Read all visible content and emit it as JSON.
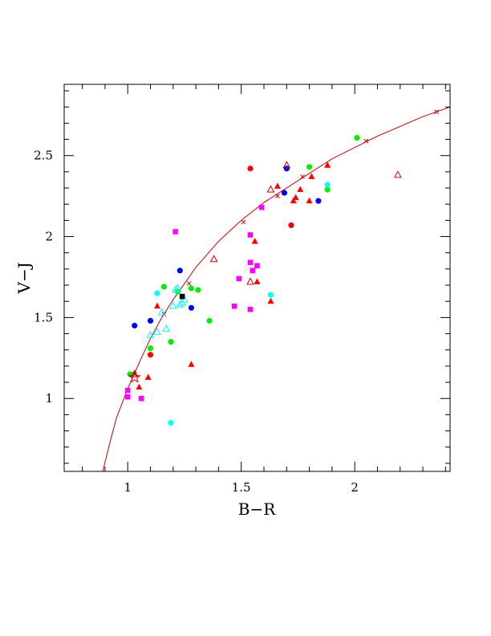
{
  "chart_data": {
    "type": "scatter",
    "xlabel": "B−R",
    "ylabel": "V−J",
    "xlim": [
      0.72,
      2.42
    ],
    "ylim": [
      0.55,
      2.94
    ],
    "x_ticks": [
      1,
      1.5,
      2
    ],
    "x_tick_labels": [
      "1",
      "1.5",
      "2"
    ],
    "y_ticks": [
      1,
      1.5,
      2,
      2.5
    ],
    "y_tick_labels": [
      "1",
      "1.5",
      "2",
      "2.5"
    ],
    "grid": false,
    "colors": {
      "red": "#ff0000",
      "magenta": "#ff00ff",
      "blue": "#0000ff",
      "green": "#00ee00",
      "cyan": "#00ffff",
      "dark_red": "#cc0000",
      "black": "#000000"
    },
    "curve": {
      "color": "#cc0000",
      "points": [
        [
          0.89,
          0.55
        ],
        [
          0.92,
          0.72
        ],
        [
          0.95,
          0.88
        ],
        [
          1.0,
          1.06
        ],
        [
          1.05,
          1.22
        ],
        [
          1.1,
          1.37
        ],
        [
          1.15,
          1.5
        ],
        [
          1.2,
          1.61
        ],
        [
          1.25,
          1.71
        ],
        [
          1.3,
          1.81
        ],
        [
          1.4,
          1.97
        ],
        [
          1.5,
          2.1
        ],
        [
          1.6,
          2.21
        ],
        [
          1.7,
          2.3
        ],
        [
          1.8,
          2.39
        ],
        [
          1.9,
          2.48
        ],
        [
          2.0,
          2.55
        ],
        [
          2.1,
          2.62
        ],
        [
          2.2,
          2.68
        ],
        [
          2.3,
          2.74
        ],
        [
          2.42,
          2.8
        ]
      ],
      "x_markers": [
        [
          1.03,
          1.15
        ],
        [
          1.16,
          1.52
        ],
        [
          1.27,
          1.71
        ],
        [
          1.51,
          2.09
        ],
        [
          1.66,
          2.25
        ],
        [
          1.77,
          2.37
        ],
        [
          2.05,
          2.59
        ],
        [
          2.36,
          2.77
        ]
      ]
    },
    "series": [
      {
        "marker": "circle",
        "color": "#ff0000",
        "x": [
          1.1,
          1.54,
          1.72
        ],
        "y": [
          1.27,
          2.42,
          2.07
        ]
      },
      {
        "marker": "triangle-filled",
        "color": "#ff0000",
        "x": [
          1.05,
          1.09,
          1.13,
          1.28,
          1.56,
          1.57,
          1.63,
          1.66,
          1.73,
          1.74,
          1.76,
          1.8,
          1.81,
          1.88
        ],
        "y": [
          1.07,
          1.13,
          1.57,
          1.21,
          1.97,
          1.72,
          1.6,
          2.31,
          2.22,
          2.24,
          2.29,
          2.22,
          2.37,
          2.44
        ]
      },
      {
        "marker": "square",
        "color": "#ff00ff",
        "x": [
          1.0,
          1.0,
          1.06,
          1.21,
          1.47,
          1.49,
          1.54,
          1.54,
          1.54,
          1.55,
          1.55,
          1.57,
          1.59
        ],
        "y": [
          1.05,
          1.01,
          1.0,
          2.03,
          1.57,
          1.74,
          1.55,
          2.01,
          1.84,
          1.79,
          1.79,
          1.82,
          2.18
        ]
      },
      {
        "marker": "circle",
        "color": "#0000ff",
        "x": [
          1.03,
          1.1,
          1.23,
          1.28,
          1.69,
          1.7,
          1.84
        ],
        "y": [
          1.45,
          1.48,
          1.79,
          1.56,
          2.27,
          2.42,
          2.22
        ]
      },
      {
        "marker": "circle",
        "color": "#00ee00",
        "x": [
          1.01,
          1.1,
          1.16,
          1.19,
          1.22,
          1.28,
          1.31,
          1.36,
          1.8,
          1.88,
          2.01
        ],
        "y": [
          1.15,
          1.31,
          1.69,
          1.35,
          1.66,
          1.68,
          1.67,
          1.48,
          2.43,
          2.29,
          2.61
        ]
      },
      {
        "marker": "circle",
        "color": "#00ffff",
        "x": [
          1.13,
          1.19,
          1.63,
          1.88
        ],
        "y": [
          1.65,
          0.85,
          1.64,
          2.32
        ]
      },
      {
        "marker": "triangle-open",
        "color": "#00ffff",
        "x": [
          1.1,
          1.13,
          1.15,
          1.17,
          1.2,
          1.21,
          1.22,
          1.23,
          1.24,
          1.25
        ],
        "y": [
          1.39,
          1.41,
          1.53,
          1.43,
          1.57,
          1.67,
          1.68,
          1.58,
          1.59,
          1.61
        ]
      },
      {
        "marker": "triangle-open",
        "color": "#cc0000",
        "x": [
          1.03,
          1.38,
          1.54,
          1.63,
          1.7,
          2.19
        ],
        "y": [
          1.15,
          1.86,
          1.72,
          2.29,
          2.44,
          2.38
        ]
      },
      {
        "marker": "square",
        "color": "#000000",
        "x": [
          1.24
        ],
        "y": [
          1.63
        ]
      },
      {
        "marker": "star-open",
        "color": "#cc0000",
        "x": [
          1.03
        ],
        "y": [
          1.13
        ]
      }
    ]
  }
}
